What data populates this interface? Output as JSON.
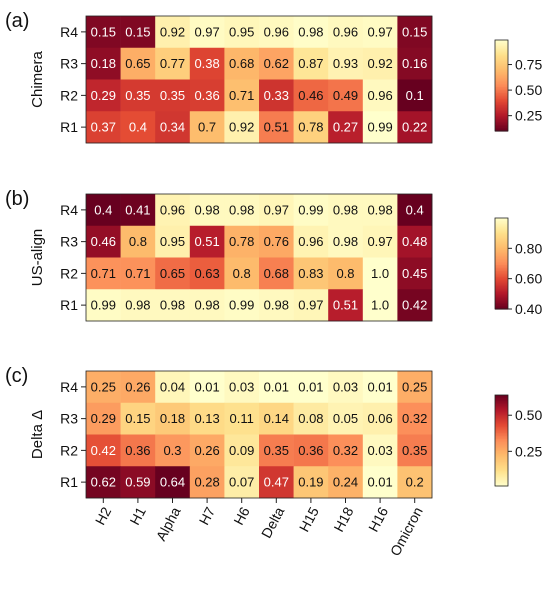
{
  "chart_data": [
    {
      "type": "heatmap",
      "panel_label": "(a)",
      "ylabel": "Chimera",
      "rows": [
        "R4",
        "R3",
        "R2",
        "R1"
      ],
      "columns": [
        "H2",
        "H1",
        "Alpha",
        "H7",
        "H6",
        "Delta",
        "H15",
        "H18",
        "H16",
        "Omicron"
      ],
      "values": [
        [
          0.15,
          0.15,
          0.92,
          0.97,
          0.95,
          0.96,
          0.98,
          0.96,
          0.97,
          0.15
        ],
        [
          0.18,
          0.65,
          0.77,
          0.38,
          0.68,
          0.62,
          0.87,
          0.93,
          0.92,
          0.16
        ],
        [
          0.29,
          0.35,
          0.35,
          0.36,
          0.71,
          0.33,
          0.46,
          0.49,
          0.96,
          0.1
        ],
        [
          0.37,
          0.4,
          0.34,
          0.7,
          0.92,
          0.51,
          0.78,
          0.27,
          0.99,
          0.22
        ]
      ],
      "labels": [
        [
          "0.15",
          "0.15",
          "0.92",
          "0.97",
          "0.95",
          "0.96",
          "0.98",
          "0.96",
          "0.97",
          "0.15"
        ],
        [
          "0.18",
          "0.65",
          "0.77",
          "0.38",
          "0.68",
          "0.62",
          "0.87",
          "0.93",
          "0.92",
          "0.16"
        ],
        [
          "0.29",
          "0.35",
          "0.35",
          "0.36",
          "0.71",
          "0.33",
          "0.46",
          "0.49",
          "0.96",
          "0.1"
        ],
        [
          "0.37",
          "0.4",
          "0.34",
          "0.7",
          "0.92",
          "0.51",
          "0.78",
          "0.27",
          "0.99",
          "0.22"
        ]
      ],
      "colorbar": {
        "ticks": [
          "0.25",
          "0.50",
          "0.75"
        ],
        "tick_values": [
          0.25,
          0.5,
          0.75
        ],
        "range": [
          0.1,
          0.99
        ],
        "reversed": false
      }
    },
    {
      "type": "heatmap",
      "panel_label": "(b)",
      "ylabel": "US-align",
      "rows": [
        "R4",
        "R3",
        "R2",
        "R1"
      ],
      "columns": [
        "H2",
        "H1",
        "Alpha",
        "H7",
        "H6",
        "Delta",
        "H15",
        "H18",
        "H16",
        "Omicron"
      ],
      "values": [
        [
          0.4,
          0.41,
          0.96,
          0.98,
          0.98,
          0.97,
          0.99,
          0.98,
          0.98,
          0.4
        ],
        [
          0.46,
          0.8,
          0.95,
          0.51,
          0.78,
          0.76,
          0.96,
          0.98,
          0.97,
          0.48
        ],
        [
          0.71,
          0.71,
          0.65,
          0.63,
          0.8,
          0.68,
          0.83,
          0.8,
          1.0,
          0.45
        ],
        [
          0.99,
          0.98,
          0.98,
          0.98,
          0.99,
          0.98,
          0.97,
          0.51,
          1.0,
          0.42
        ]
      ],
      "labels": [
        [
          "0.4",
          "0.41",
          "0.96",
          "0.98",
          "0.98",
          "0.97",
          "0.99",
          "0.98",
          "0.98",
          "0.4"
        ],
        [
          "0.46",
          "0.8",
          "0.95",
          "0.51",
          "0.78",
          "0.76",
          "0.96",
          "0.98",
          "0.97",
          "0.48"
        ],
        [
          "0.71",
          "0.71",
          "0.65",
          "0.63",
          "0.8",
          "0.68",
          "0.83",
          "0.8",
          "1.0",
          "0.45"
        ],
        [
          "0.99",
          "0.98",
          "0.98",
          "0.98",
          "0.99",
          "0.98",
          "0.97",
          "0.51",
          "1.0",
          "0.42"
        ]
      ],
      "colorbar": {
        "ticks": [
          "0.40",
          "0.60",
          "0.80"
        ],
        "tick_values": [
          0.4,
          0.6,
          0.8
        ],
        "range": [
          0.4,
          1.0
        ],
        "reversed": false
      }
    },
    {
      "type": "heatmap",
      "panel_label": "(c)",
      "ylabel": "Delta Δ",
      "rows": [
        "R4",
        "R3",
        "R2",
        "R1"
      ],
      "columns": [
        "H2",
        "H1",
        "Alpha",
        "H7",
        "H6",
        "Delta",
        "H15",
        "H18",
        "H16",
        "Omicron"
      ],
      "values": [
        [
          0.25,
          0.26,
          0.04,
          0.01,
          0.03,
          0.01,
          0.01,
          0.03,
          0.01,
          0.25
        ],
        [
          0.29,
          0.15,
          0.18,
          0.13,
          0.11,
          0.14,
          0.08,
          0.05,
          0.06,
          0.32
        ],
        [
          0.42,
          0.36,
          0.3,
          0.26,
          0.09,
          0.35,
          0.36,
          0.32,
          0.03,
          0.35
        ],
        [
          0.62,
          0.59,
          0.64,
          0.28,
          0.07,
          0.47,
          0.19,
          0.24,
          0.01,
          0.2
        ]
      ],
      "labels": [
        [
          "0.25",
          "0.26",
          "0.04",
          "0.01",
          "0.03",
          "0.01",
          "0.01",
          "0.03",
          "0.01",
          "0.25"
        ],
        [
          "0.29",
          "0.15",
          "0.18",
          "0.13",
          "0.11",
          "0.14",
          "0.08",
          "0.05",
          "0.06",
          "0.32"
        ],
        [
          "0.42",
          "0.36",
          "0.3",
          "0.26",
          "0.09",
          "0.35",
          "0.36",
          "0.32",
          "0.03",
          "0.35"
        ],
        [
          "0.62",
          "0.59",
          "0.64",
          "0.28",
          "0.07",
          "0.47",
          "0.19",
          "0.24",
          "0.01",
          "0.2"
        ]
      ],
      "colorbar": {
        "ticks": [
          "0.25",
          "0.50"
        ],
        "tick_values": [
          0.25,
          0.5
        ],
        "range": [
          0.01,
          0.64
        ],
        "reversed": true
      }
    }
  ],
  "colormap": [
    "#67001f",
    "#b2182b",
    "#e34a33",
    "#fc8d59",
    "#fdbb6c",
    "#fee08b",
    "#ffffcc"
  ]
}
